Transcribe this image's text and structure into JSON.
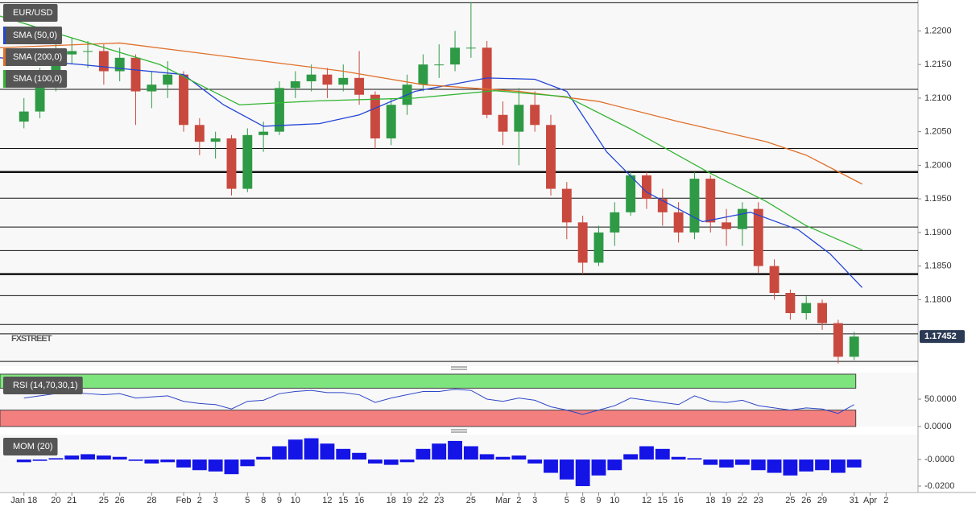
{
  "chart_data": [
    {
      "type": "candlestick",
      "title": "EUR/USD",
      "watermark": "FXSTREET",
      "x": [
        0,
        1,
        2,
        3,
        4,
        5,
        6,
        7,
        8,
        9,
        10,
        11,
        12,
        13,
        14,
        15,
        16,
        17,
        18,
        19,
        20,
        21,
        22,
        23,
        24,
        25,
        26,
        27,
        28,
        29,
        30,
        31,
        32,
        33,
        34,
        35,
        36,
        37,
        38,
        39,
        40,
        41,
        42,
        43,
        44,
        45,
        46,
        47,
        48,
        49,
        50,
        51,
        52
      ],
      "open": [
        1.2065,
        1.208,
        1.213,
        1.2165,
        1.217,
        1.217,
        1.214,
        1.216,
        1.211,
        1.212,
        1.2135,
        1.206,
        1.2035,
        1.204,
        1.1965,
        1.2045,
        1.205,
        1.2115,
        1.2125,
        1.2135,
        1.212,
        1.213,
        1.2105,
        1.204,
        1.209,
        1.212,
        1.215,
        1.215,
        1.2175,
        1.2175,
        1.2075,
        1.205,
        1.209,
        1.206,
        1.1965,
        1.1915,
        1.1855,
        1.19,
        1.193,
        1.1985,
        1.195,
        1.193,
        1.19,
        1.198,
        1.1915,
        1.1905,
        1.1935,
        1.185,
        1.181,
        1.178,
        1.1795,
        1.1765,
        1.1715
      ],
      "high": [
        1.21,
        1.2145,
        1.2185,
        1.219,
        1.2185,
        1.218,
        1.2175,
        1.2165,
        1.214,
        1.2155,
        1.214,
        1.207,
        1.205,
        1.2045,
        1.2055,
        1.2065,
        1.2125,
        1.214,
        1.215,
        1.2145,
        1.215,
        1.217,
        1.211,
        1.21,
        1.2135,
        1.2165,
        1.218,
        1.22,
        1.2243,
        1.2185,
        1.2095,
        1.2115,
        1.211,
        1.2075,
        1.1975,
        1.1925,
        1.191,
        1.1945,
        1.199,
        1.199,
        1.1965,
        1.1945,
        1.199,
        1.1985,
        1.1935,
        1.1945,
        1.1945,
        1.186,
        1.1815,
        1.1805,
        1.18,
        1.177,
        1.1752
      ],
      "low": [
        1.2055,
        1.207,
        1.211,
        1.215,
        1.2145,
        1.212,
        1.2125,
        1.206,
        1.2085,
        1.21,
        1.205,
        1.2015,
        1.201,
        1.1955,
        1.196,
        1.202,
        1.2045,
        1.21,
        1.211,
        1.21,
        1.211,
        1.209,
        1.2025,
        1.203,
        1.2075,
        1.211,
        1.213,
        1.214,
        1.216,
        1.207,
        1.203,
        1.2,
        1.205,
        1.1955,
        1.189,
        1.1838,
        1.185,
        1.188,
        1.1925,
        1.1935,
        1.191,
        1.1885,
        1.189,
        1.19,
        1.188,
        1.188,
        1.184,
        1.18,
        1.177,
        1.177,
        1.1755,
        1.1705,
        1.171
      ],
      "close": [
        1.208,
        1.213,
        1.2165,
        1.217,
        1.217,
        1.214,
        1.216,
        1.211,
        1.212,
        1.2135,
        1.206,
        1.2035,
        1.204,
        1.1965,
        1.2045,
        1.205,
        1.2115,
        1.2125,
        1.2135,
        1.212,
        1.213,
        1.2105,
        1.204,
        1.209,
        1.212,
        1.215,
        1.215,
        1.2175,
        1.2175,
        1.2075,
        1.205,
        1.209,
        1.206,
        1.1965,
        1.1915,
        1.1855,
        1.19,
        1.193,
        1.1985,
        1.195,
        1.193,
        1.19,
        1.198,
        1.1915,
        1.1905,
        1.1935,
        1.185,
        1.181,
        1.178,
        1.1795,
        1.1765,
        1.1715,
        1.1745
      ],
      "up_color": "#2f9a45",
      "down_color": "#c9493f",
      "series": [
        {
          "name": "SMA (50,0)",
          "color": "#2445d6",
          "x": [
            -1.5,
            3.5,
            10,
            12.5,
            15,
            18.5,
            21,
            24.5,
            29,
            32,
            34,
            36.5,
            39,
            42.5,
            45.5,
            48.5,
            50.5,
            52.5
          ],
          "values": [
            1.216,
            1.215,
            1.2135,
            1.209,
            1.2058,
            1.2062,
            1.2075,
            1.211,
            1.213,
            1.2128,
            1.211,
            1.202,
            1.196,
            1.1916,
            1.193,
            1.1904,
            1.1868,
            1.1818
          ]
        },
        {
          "name": "SMA (200,0)",
          "color": "#e0702a",
          "x": [
            -1.5,
            6,
            15,
            20,
            25,
            31,
            36,
            41,
            46.5,
            49,
            52.5
          ],
          "values": [
            1.2175,
            1.2182,
            1.2155,
            1.214,
            1.212,
            1.211,
            1.2095,
            1.2065,
            1.2035,
            1.2015,
            1.1972
          ]
        },
        {
          "name": "SMA (100,0)",
          "color": "#33b533",
          "x": [
            -1.5,
            8.5,
            13.5,
            18.5,
            24.5,
            29.5,
            34,
            38,
            43,
            46.5,
            49,
            52.5
          ],
          "values": [
            1.2222,
            1.215,
            1.209,
            1.2096,
            1.21,
            1.2111,
            1.2102,
            1.2054,
            1.1988,
            1.1946,
            1.191,
            1.1874
          ]
        }
      ],
      "levels": [
        {
          "value": 1.2242,
          "major": false
        },
        {
          "value": 1.2113,
          "major": false
        },
        {
          "value": 1.2025,
          "major": false
        },
        {
          "value": 1.199,
          "major": true
        },
        {
          "value": 1.1951,
          "major": false
        },
        {
          "value": 1.1908,
          "major": false
        },
        {
          "value": 1.1873,
          "major": false
        },
        {
          "value": 1.1838,
          "major": true
        },
        {
          "value": 1.1806,
          "major": false
        },
        {
          "value": 1.1763,
          "major": false
        },
        {
          "value": 1.1749,
          "major": false
        },
        {
          "value": 1.1708,
          "major": false
        }
      ],
      "last_price": 1.17452,
      "xlim": [
        -1.5,
        56
      ],
      "ylim": [
        1.1701,
        1.2246
      ],
      "yticks": [
        {
          "value": 1.22,
          "label": "1.2200"
        },
        {
          "value": 1.215,
          "label": "1.2150"
        },
        {
          "value": 1.21,
          "label": "1.2100"
        },
        {
          "value": 1.205,
          "label": "1.2050"
        },
        {
          "value": 1.2,
          "label": "1.2000"
        },
        {
          "value": 1.195,
          "label": "1.1950"
        },
        {
          "value": 1.19,
          "label": "1.1900"
        },
        {
          "value": 1.185,
          "label": "1.1850"
        },
        {
          "value": 1.18,
          "label": "1.1800"
        }
      ],
      "xticks": [
        {
          "value": 0,
          "label": "Jan 18"
        },
        {
          "value": 2,
          "label": "20"
        },
        {
          "value": 3,
          "label": "21"
        },
        {
          "value": 5,
          "label": "25"
        },
        {
          "value": 6,
          "label": "26"
        },
        {
          "value": 8,
          "label": "28"
        },
        {
          "value": 10,
          "label": "Feb"
        },
        {
          "value": 11,
          "label": "2"
        },
        {
          "value": 12,
          "label": "3"
        },
        {
          "value": 14,
          "label": "5"
        },
        {
          "value": 15,
          "label": "8"
        },
        {
          "value": 16,
          "label": "9"
        },
        {
          "value": 17,
          "label": "10"
        },
        {
          "value": 19,
          "label": "12"
        },
        {
          "value": 20,
          "label": "15"
        },
        {
          "value": 21,
          "label": "16"
        },
        {
          "value": 23,
          "label": "18"
        },
        {
          "value": 24,
          "label": "19"
        },
        {
          "value": 25,
          "label": "22"
        },
        {
          "value": 26,
          "label": "23"
        },
        {
          "value": 28,
          "label": "25"
        },
        {
          "value": 30,
          "label": "Mar"
        },
        {
          "value": 31,
          "label": "2"
        },
        {
          "value": 32,
          "label": "3"
        },
        {
          "value": 34,
          "label": "5"
        },
        {
          "value": 35,
          "label": "8"
        },
        {
          "value": 36,
          "label": "9"
        },
        {
          "value": 37,
          "label": "10"
        },
        {
          "value": 39,
          "label": "12"
        },
        {
          "value": 40,
          "label": "15"
        },
        {
          "value": 41,
          "label": "16"
        },
        {
          "value": 43,
          "label": "18"
        },
        {
          "value": 44,
          "label": "19"
        },
        {
          "value": 45,
          "label": "22"
        },
        {
          "value": 46,
          "label": "23"
        },
        {
          "value": 48,
          "label": "25"
        },
        {
          "value": 49,
          "label": "26"
        },
        {
          "value": 50,
          "label": "29"
        },
        {
          "value": 52,
          "label": "31"
        },
        {
          "value": 53,
          "label": "Apr"
        },
        {
          "value": 54,
          "label": "2"
        }
      ]
    },
    {
      "type": "line",
      "title": "RSI (14,70,30,1)",
      "color": "#2e46c8",
      "overbought": 70,
      "oversold": 30,
      "overbought_color": "#7ee57e",
      "oversold_color": "#f47f7f",
      "x": [
        0,
        1,
        2,
        3,
        4,
        5,
        6,
        7,
        8,
        9,
        10,
        11,
        12,
        13,
        14,
        15,
        16,
        17,
        18,
        19,
        20,
        21,
        22,
        23,
        24,
        25,
        26,
        27,
        28,
        29,
        30,
        31,
        32,
        33,
        34,
        35,
        36,
        37,
        38,
        39,
        40,
        41,
        42,
        43,
        44,
        45,
        46,
        47,
        48,
        49,
        50,
        51,
        52
      ],
      "values": [
        52,
        56,
        60,
        62,
        60,
        58,
        60,
        52,
        54,
        56,
        46,
        42,
        40,
        32,
        46,
        48,
        60,
        64,
        66,
        62,
        62,
        58,
        44,
        52,
        58,
        64,
        64,
        68,
        66,
        50,
        46,
        52,
        48,
        36,
        30,
        22,
        30,
        38,
        52,
        48,
        44,
        40,
        56,
        46,
        44,
        48,
        38,
        34,
        30,
        34,
        32,
        24,
        40
      ],
      "xlim": [
        -1.5,
        56
      ],
      "ylim": [
        0,
        98.5
      ],
      "yticks": [
        {
          "value": 50,
          "label": "50.0000"
        },
        {
          "value": 0,
          "label": "0.0000"
        }
      ]
    },
    {
      "type": "bar",
      "title": "MOM (20)",
      "color": "#1414e6",
      "x": [
        0,
        1,
        2,
        3,
        4,
        5,
        6,
        7,
        8,
        9,
        10,
        11,
        12,
        13,
        14,
        15,
        16,
        17,
        18,
        19,
        20,
        21,
        22,
        23,
        24,
        25,
        26,
        27,
        28,
        29,
        30,
        31,
        32,
        33,
        34,
        35,
        36,
        37,
        38,
        39,
        40,
        41,
        42,
        43,
        44,
        45,
        46,
        47,
        48,
        49,
        50,
        51,
        52
      ],
      "values": [
        -0.002,
        -0.001,
        0.001,
        0.003,
        0.004,
        0.003,
        0.002,
        -0.001,
        -0.003,
        -0.002,
        -0.006,
        -0.008,
        -0.009,
        -0.011,
        -0.005,
        0.002,
        0.01,
        0.015,
        0.016,
        0.012,
        0.008,
        0.005,
        -0.003,
        -0.004,
        -0.002,
        0.008,
        0.012,
        0.014,
        0.01,
        0.004,
        0.002,
        0.003,
        -0.003,
        -0.01,
        -0.015,
        -0.02,
        -0.012,
        -0.008,
        0.004,
        0.01,
        0.008,
        0.002,
        0.001,
        -0.004,
        -0.006,
        -0.004,
        -0.008,
        -0.01,
        -0.012,
        -0.009,
        -0.008,
        -0.01,
        -0.006
      ],
      "xlim": [
        -1.5,
        56
      ],
      "ylim": [
        -0.0236,
        0.0188
      ],
      "yticks": [
        {
          "value": 0,
          "label": "-0.0000"
        },
        {
          "value": -0.02,
          "label": "-0.0200"
        }
      ]
    }
  ]
}
